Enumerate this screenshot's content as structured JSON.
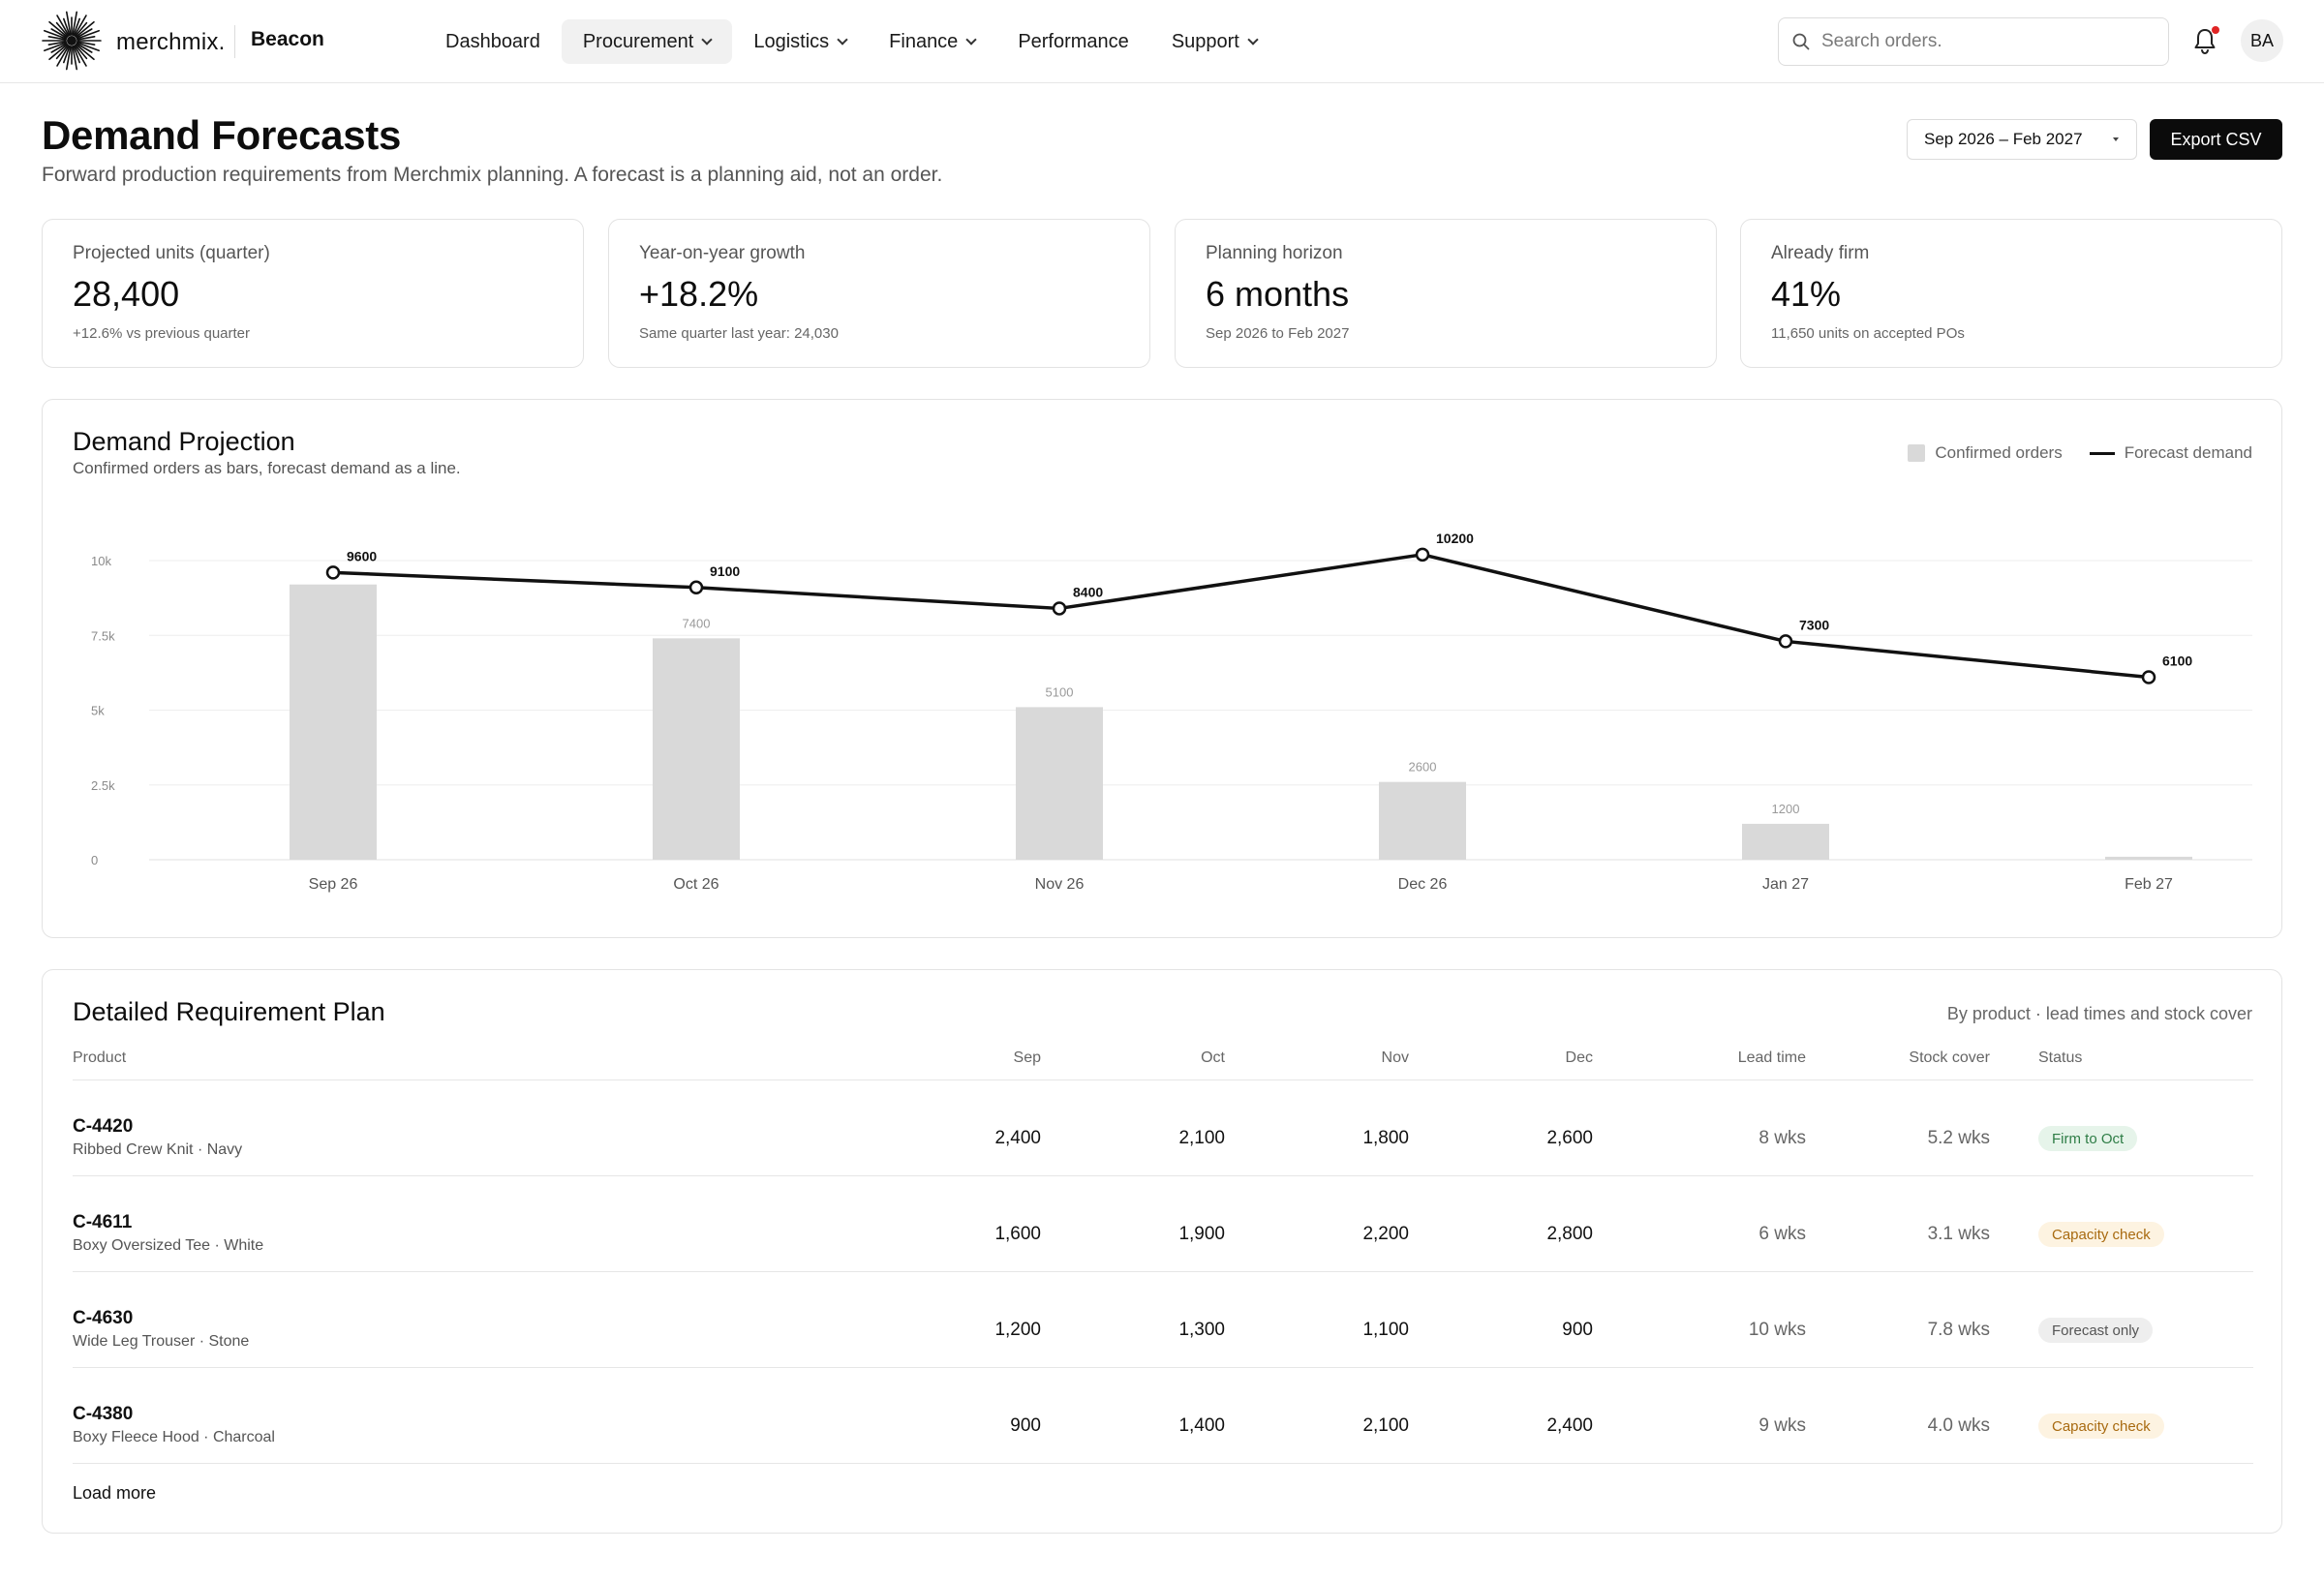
{
  "brand": {
    "logo_text": "merchmix.",
    "app_name": "Beacon"
  },
  "nav": [
    {
      "label": "Dashboard",
      "dropdown": false,
      "active": false
    },
    {
      "label": "Procurement",
      "dropdown": true,
      "active": true
    },
    {
      "label": "Logistics",
      "dropdown": true,
      "active": false
    },
    {
      "label": "Finance",
      "dropdown": true,
      "active": false
    },
    {
      "label": "Performance",
      "dropdown": false,
      "active": false
    },
    {
      "label": "Support",
      "dropdown": true,
      "active": false
    }
  ],
  "search": {
    "placeholder": "Search orders."
  },
  "user": {
    "initials": "BA",
    "notification_icon": "bell-icon"
  },
  "header": {
    "title": "Demand Forecasts",
    "subtitle": "Forward production requirements from Merchmix planning. A forecast is a planning aid, not an order.",
    "date_range": "Sep 2026 – Feb 2027",
    "export_label": "Export CSV"
  },
  "kpis": [
    {
      "label": "Projected units (quarter)",
      "value": "28,400",
      "sub": "+12.6% vs previous quarter"
    },
    {
      "label": "Year-on-year growth",
      "value": "+18.2%",
      "sub": "Same quarter last year: 24,030"
    },
    {
      "label": "Planning horizon",
      "value": "6 months",
      "sub": "Sep 2026 to Feb 2027"
    },
    {
      "label": "Already firm",
      "value": "41%",
      "sub": "11,650 units on accepted POs"
    }
  ],
  "chart": {
    "title": "Demand Projection",
    "subtitle": "Confirmed orders as bars, forecast demand as a line.",
    "legend": {
      "bars": "Confirmed orders",
      "line": "Forecast demand"
    }
  },
  "chart_data": {
    "type": "bar",
    "categories": [
      "Sep 26",
      "Oct 26",
      "Nov 26",
      "Dec 26",
      "Jan 27",
      "Feb 27"
    ],
    "series": [
      {
        "name": "Confirmed orders",
        "type": "bar",
        "values": [
          9200,
          7400,
          5100,
          2600,
          1200,
          100
        ],
        "labels": [
          "",
          "7400",
          "5100",
          "2600",
          "1200",
          ""
        ]
      },
      {
        "name": "Forecast demand",
        "type": "line",
        "values": [
          9600,
          9100,
          8400,
          10200,
          7300,
          6100
        ],
        "labels": [
          "9600",
          "9100",
          "8400",
          "10200",
          "7300",
          "6100"
        ]
      }
    ],
    "yticks": [
      0,
      2500,
      5000,
      7500,
      10000
    ],
    "ytick_labels": [
      "0",
      "2.5k",
      "5k",
      "7.5k",
      "10k"
    ],
    "ylim": [
      0,
      10000
    ],
    "grid": true,
    "legend_position": "top-right",
    "colors": {
      "bar": "#d9d9d9",
      "line": "#111111"
    }
  },
  "table": {
    "title": "Detailed Requirement Plan",
    "note": "By product · lead times and stock cover",
    "columns": [
      "Product",
      "Sep",
      "Oct",
      "Nov",
      "Dec",
      "Lead time",
      "Stock cover",
      "Status"
    ],
    "rows": [
      {
        "sku": "C-4420",
        "name": "Ribbed Crew Knit · Navy",
        "sep": "2,400",
        "oct": "2,100",
        "nov": "1,800",
        "dec": "2,600",
        "lead": "8 wks",
        "cover": "5.2 wks",
        "status": "Firm to Oct",
        "status_tone": "green"
      },
      {
        "sku": "C-4611",
        "name": "Boxy Oversized Tee · White",
        "sep": "1,600",
        "oct": "1,900",
        "nov": "2,200",
        "dec": "2,800",
        "lead": "6 wks",
        "cover": "3.1 wks",
        "status": "Capacity check",
        "status_tone": "amber"
      },
      {
        "sku": "C-4630",
        "name": "Wide Leg Trouser · Stone",
        "sep": "1,200",
        "oct": "1,300",
        "nov": "1,100",
        "dec": "900",
        "lead": "10 wks",
        "cover": "7.8 wks",
        "status": "Forecast only",
        "status_tone": "gray"
      },
      {
        "sku": "C-4380",
        "name": "Boxy Fleece Hood · Charcoal",
        "sep": "900",
        "oct": "1,400",
        "nov": "2,100",
        "dec": "2,400",
        "lead": "9 wks",
        "cover": "4.0 wks",
        "status": "Capacity check",
        "status_tone": "amber"
      }
    ],
    "load_more": "Load more"
  }
}
